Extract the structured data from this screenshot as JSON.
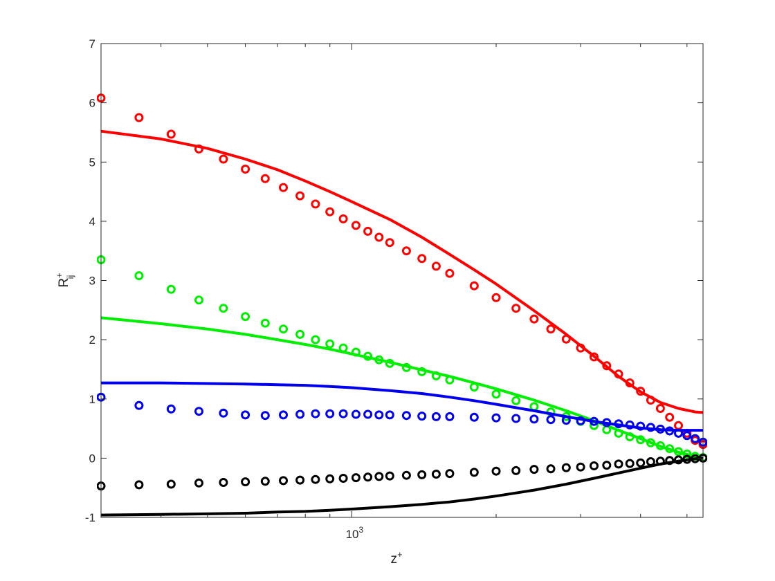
{
  "chart_data": {
    "type": "scatter",
    "title": "",
    "xlabel": "z",
    "xlabel_sup": "+",
    "ylabel": "R",
    "ylabel_sup": "+",
    "ylabel_sub": "ij",
    "x_scale": "log",
    "xlim": [
      300,
      5400
    ],
    "ylim": [
      -1,
      7
    ],
    "yticks": [
      -1,
      0,
      1,
      2,
      3,
      4,
      5,
      6,
      7
    ],
    "xtick_labels": [
      {
        "value": 1000,
        "base": "10",
        "exp": "3"
      }
    ],
    "x_minor_ticks": [
      400,
      500,
      600,
      700,
      800,
      900,
      2000,
      3000,
      4000,
      5000
    ],
    "grid": false,
    "legend": "none",
    "series": [
      {
        "color": "#ff0000",
        "markers": [
          [
            300,
            6.08
          ],
          [
            360,
            5.75
          ],
          [
            420,
            5.47
          ],
          [
            480,
            5.22
          ],
          [
            540,
            5.05
          ],
          [
            600,
            4.88
          ],
          [
            660,
            4.72
          ],
          [
            720,
            4.57
          ],
          [
            780,
            4.43
          ],
          [
            840,
            4.29
          ],
          [
            900,
            4.16
          ],
          [
            960,
            4.04
          ],
          [
            1020,
            3.93
          ],
          [
            1080,
            3.83
          ],
          [
            1140,
            3.73
          ],
          [
            1200,
            3.64
          ],
          [
            1300,
            3.5
          ],
          [
            1400,
            3.37
          ],
          [
            1500,
            3.24
          ],
          [
            1600,
            3.12
          ],
          [
            1800,
            2.91
          ],
          [
            2000,
            2.71
          ],
          [
            2200,
            2.53
          ],
          [
            2400,
            2.35
          ],
          [
            2600,
            2.18
          ],
          [
            2800,
            2.01
          ],
          [
            3000,
            1.86
          ],
          [
            3200,
            1.71
          ],
          [
            3400,
            1.56
          ],
          [
            3600,
            1.42
          ],
          [
            3800,
            1.27
          ],
          [
            4000,
            1.13
          ],
          [
            4200,
            0.98
          ],
          [
            4400,
            0.84
          ],
          [
            4600,
            0.69
          ],
          [
            4800,
            0.55
          ],
          [
            5000,
            0.42
          ],
          [
            5200,
            0.3
          ],
          [
            5400,
            0.23
          ]
        ],
        "line": [
          [
            300,
            5.52
          ],
          [
            400,
            5.39
          ],
          [
            500,
            5.23
          ],
          [
            600,
            5.05
          ],
          [
            700,
            4.87
          ],
          [
            800,
            4.68
          ],
          [
            900,
            4.5
          ],
          [
            1000,
            4.33
          ],
          [
            1200,
            4.03
          ],
          [
            1400,
            3.73
          ],
          [
            1600,
            3.44
          ],
          [
            1800,
            3.18
          ],
          [
            2000,
            2.94
          ],
          [
            2400,
            2.49
          ],
          [
            2800,
            2.09
          ],
          [
            3200,
            1.72
          ],
          [
            3600,
            1.38
          ],
          [
            4000,
            1.12
          ],
          [
            4400,
            0.94
          ],
          [
            4800,
            0.84
          ],
          [
            5200,
            0.78
          ],
          [
            5400,
            0.77
          ]
        ]
      },
      {
        "color": "#00ee00",
        "markers": [
          [
            300,
            3.35
          ],
          [
            360,
            3.08
          ],
          [
            420,
            2.85
          ],
          [
            480,
            2.67
          ],
          [
            540,
            2.53
          ],
          [
            600,
            2.39
          ],
          [
            660,
            2.28
          ],
          [
            720,
            2.18
          ],
          [
            780,
            2.09
          ],
          [
            840,
            2.0
          ],
          [
            900,
            1.93
          ],
          [
            960,
            1.86
          ],
          [
            1020,
            1.79
          ],
          [
            1080,
            1.72
          ],
          [
            1140,
            1.66
          ],
          [
            1200,
            1.6
          ],
          [
            1300,
            1.53
          ],
          [
            1400,
            1.46
          ],
          [
            1500,
            1.39
          ],
          [
            1600,
            1.32
          ],
          [
            1800,
            1.2
          ],
          [
            2000,
            1.08
          ],
          [
            2200,
            0.97
          ],
          [
            2400,
            0.87
          ],
          [
            2600,
            0.78
          ],
          [
            2800,
            0.7
          ],
          [
            3000,
            0.62
          ],
          [
            3200,
            0.55
          ],
          [
            3400,
            0.48
          ],
          [
            3600,
            0.42
          ],
          [
            3800,
            0.36
          ],
          [
            4000,
            0.31
          ],
          [
            4200,
            0.26
          ],
          [
            4400,
            0.21
          ],
          [
            4600,
            0.16
          ],
          [
            4800,
            0.11
          ],
          [
            5000,
            0.07
          ],
          [
            5200,
            0.03
          ],
          [
            5400,
            0.01
          ]
        ],
        "line": [
          [
            300,
            2.37
          ],
          [
            400,
            2.27
          ],
          [
            500,
            2.18
          ],
          [
            600,
            2.09
          ],
          [
            700,
            2.0
          ],
          [
            800,
            1.92
          ],
          [
            900,
            1.84
          ],
          [
            1000,
            1.76
          ],
          [
            1200,
            1.62
          ],
          [
            1400,
            1.49
          ],
          [
            1600,
            1.38
          ],
          [
            1800,
            1.27
          ],
          [
            2000,
            1.17
          ],
          [
            2400,
            0.98
          ],
          [
            2800,
            0.8
          ],
          [
            3200,
            0.63
          ],
          [
            3600,
            0.47
          ],
          [
            4000,
            0.33
          ],
          [
            4400,
            0.2
          ],
          [
            4800,
            0.1
          ],
          [
            5200,
            0.03
          ],
          [
            5400,
            0.0
          ]
        ]
      },
      {
        "color": "#0000ee",
        "markers": [
          [
            300,
            1.03
          ],
          [
            360,
            0.89
          ],
          [
            420,
            0.83
          ],
          [
            480,
            0.79
          ],
          [
            540,
            0.76
          ],
          [
            600,
            0.73
          ],
          [
            660,
            0.72
          ],
          [
            720,
            0.73
          ],
          [
            780,
            0.74
          ],
          [
            840,
            0.75
          ],
          [
            900,
            0.75
          ],
          [
            960,
            0.75
          ],
          [
            1020,
            0.74
          ],
          [
            1080,
            0.74
          ],
          [
            1140,
            0.73
          ],
          [
            1200,
            0.73
          ],
          [
            1300,
            0.72
          ],
          [
            1400,
            0.71
          ],
          [
            1500,
            0.7
          ],
          [
            1600,
            0.7
          ],
          [
            1800,
            0.69
          ],
          [
            2000,
            0.68
          ],
          [
            2200,
            0.67
          ],
          [
            2400,
            0.66
          ],
          [
            2600,
            0.65
          ],
          [
            2800,
            0.64
          ],
          [
            3000,
            0.63
          ],
          [
            3200,
            0.62
          ],
          [
            3400,
            0.6
          ],
          [
            3600,
            0.58
          ],
          [
            3800,
            0.56
          ],
          [
            4000,
            0.54
          ],
          [
            4200,
            0.52
          ],
          [
            4400,
            0.49
          ],
          [
            4600,
            0.46
          ],
          [
            4800,
            0.42
          ],
          [
            5000,
            0.38
          ],
          [
            5200,
            0.33
          ],
          [
            5400,
            0.27
          ]
        ],
        "line": [
          [
            300,
            1.27
          ],
          [
            400,
            1.27
          ],
          [
            500,
            1.26
          ],
          [
            600,
            1.25
          ],
          [
            700,
            1.24
          ],
          [
            800,
            1.23
          ],
          [
            900,
            1.21
          ],
          [
            1000,
            1.19
          ],
          [
            1200,
            1.14
          ],
          [
            1400,
            1.09
          ],
          [
            1600,
            1.03
          ],
          [
            1800,
            0.97
          ],
          [
            2000,
            0.91
          ],
          [
            2400,
            0.8
          ],
          [
            2800,
            0.7
          ],
          [
            3200,
            0.62
          ],
          [
            3600,
            0.56
          ],
          [
            4000,
            0.51
          ],
          [
            4400,
            0.48
          ],
          [
            4800,
            0.47
          ],
          [
            5200,
            0.47
          ],
          [
            5400,
            0.47
          ]
        ]
      },
      {
        "color": "#000000",
        "markers": [
          [
            300,
            -0.47
          ],
          [
            360,
            -0.45
          ],
          [
            420,
            -0.44
          ],
          [
            480,
            -0.42
          ],
          [
            540,
            -0.41
          ],
          [
            600,
            -0.4
          ],
          [
            660,
            -0.39
          ],
          [
            720,
            -0.38
          ],
          [
            780,
            -0.37
          ],
          [
            840,
            -0.36
          ],
          [
            900,
            -0.35
          ],
          [
            960,
            -0.34
          ],
          [
            1020,
            -0.33
          ],
          [
            1080,
            -0.32
          ],
          [
            1140,
            -0.31
          ],
          [
            1200,
            -0.3
          ],
          [
            1300,
            -0.29
          ],
          [
            1400,
            -0.28
          ],
          [
            1500,
            -0.27
          ],
          [
            1600,
            -0.26
          ],
          [
            1800,
            -0.24
          ],
          [
            2000,
            -0.22
          ],
          [
            2200,
            -0.21
          ],
          [
            2400,
            -0.19
          ],
          [
            2600,
            -0.18
          ],
          [
            2800,
            -0.16
          ],
          [
            3000,
            -0.15
          ],
          [
            3200,
            -0.13
          ],
          [
            3400,
            -0.12
          ],
          [
            3600,
            -0.1
          ],
          [
            3800,
            -0.09
          ],
          [
            4000,
            -0.08
          ],
          [
            4200,
            -0.06
          ],
          [
            4400,
            -0.05
          ],
          [
            4600,
            -0.04
          ],
          [
            4800,
            -0.03
          ],
          [
            5000,
            -0.02
          ],
          [
            5200,
            -0.01
          ],
          [
            5400,
            0.0
          ]
        ],
        "line": [
          [
            300,
            -0.96
          ],
          [
            400,
            -0.95
          ],
          [
            500,
            -0.94
          ],
          [
            600,
            -0.93
          ],
          [
            700,
            -0.91
          ],
          [
            800,
            -0.9
          ],
          [
            900,
            -0.88
          ],
          [
            1000,
            -0.86
          ],
          [
            1200,
            -0.82
          ],
          [
            1400,
            -0.78
          ],
          [
            1600,
            -0.74
          ],
          [
            1800,
            -0.69
          ],
          [
            2000,
            -0.64
          ],
          [
            2400,
            -0.54
          ],
          [
            2800,
            -0.44
          ],
          [
            3200,
            -0.34
          ],
          [
            3600,
            -0.25
          ],
          [
            4000,
            -0.17
          ],
          [
            4400,
            -0.1
          ],
          [
            4800,
            -0.05
          ],
          [
            5200,
            -0.01
          ],
          [
            5400,
            0.0
          ]
        ]
      }
    ]
  }
}
